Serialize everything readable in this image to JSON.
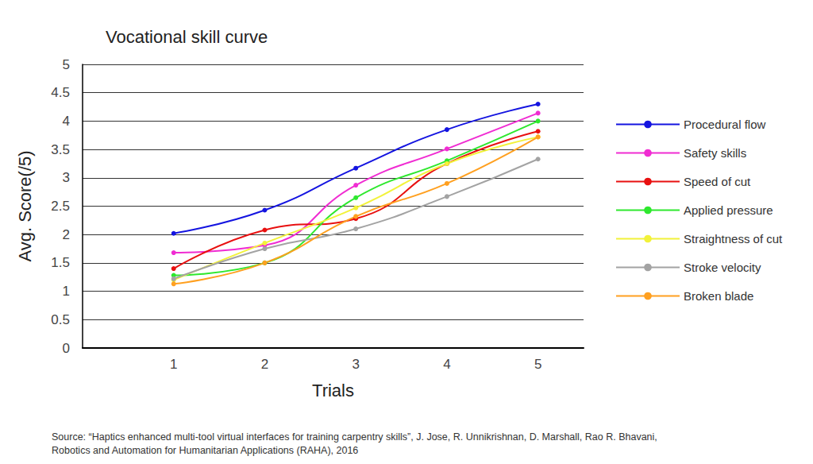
{
  "chart_data": {
    "type": "line",
    "title": "Vocational skill curve",
    "x_label": "Trials",
    "y_label": "Avg. Score(/5)",
    "x": [
      1,
      2,
      3,
      4,
      5
    ],
    "xlim": [
      0,
      5.5
    ],
    "xticks": [
      1,
      2,
      3,
      4,
      5
    ],
    "ylim": [
      0,
      5
    ],
    "yticks": [
      0,
      0.5,
      1,
      1.5,
      2,
      2.5,
      3,
      3.5,
      4,
      4.5,
      5
    ],
    "grid": true,
    "legend": "right",
    "marker": "circle",
    "line_style": "solid",
    "series": [
      {
        "name": "Procedural flow",
        "color": "#1414e0",
        "values": [
          2.02,
          2.43,
          3.17,
          3.85,
          4.3
        ]
      },
      {
        "name": "Safety skills",
        "color": "#f02cd2",
        "values": [
          1.68,
          1.81,
          2.87,
          3.51,
          4.14
        ]
      },
      {
        "name": "Speed of cut",
        "color": "#e81010",
        "values": [
          1.4,
          2.08,
          2.28,
          3.25,
          3.82
        ]
      },
      {
        "name": "Applied pressure",
        "color": "#2ee82e",
        "values": [
          1.28,
          1.5,
          2.65,
          3.3,
          4.0
        ]
      },
      {
        "name": "Straightness of cut",
        "color": "#f2f23a",
        "values": [
          1.2,
          1.85,
          2.47,
          3.25,
          3.72
        ]
      },
      {
        "name": "Stroke velocity",
        "color": "#a3a3a3",
        "values": [
          1.22,
          1.75,
          2.1,
          2.67,
          3.33
        ]
      },
      {
        "name": "Broken blade",
        "color": "#ffa020",
        "values": [
          1.13,
          1.5,
          2.32,
          2.9,
          3.72
        ]
      }
    ],
    "source": [
      "Source: “Haptics enhanced multi-tool virtual interfaces for training carpentry skills”, J. Jose, R. Unnikrishnan, D. Marshall, Rao R. Bhavani,",
      "Robotics and Automation for Humanitarian Applications (RAHA), 2016"
    ]
  }
}
